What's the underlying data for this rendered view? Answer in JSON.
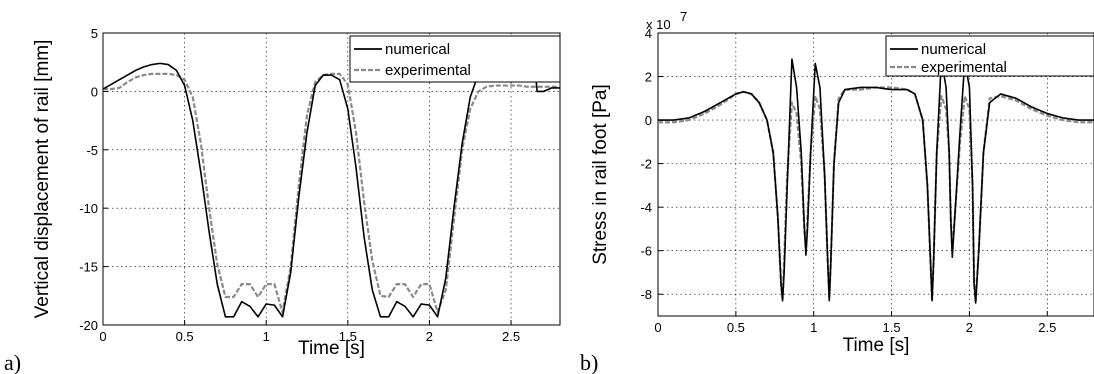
{
  "panels": [
    {
      "letter": "a)"
    },
    {
      "letter": "b)"
    }
  ],
  "chart_data": [
    {
      "type": "line",
      "title": "",
      "xlabel": "Time [s]",
      "ylabel": "Vertical displacement of rail [mm]",
      "xlim": [
        0,
        2.8
      ],
      "ylim": [
        -20,
        5
      ],
      "xticks": [
        "0",
        "0.5",
        "1",
        "1.5",
        "2",
        "2.5"
      ],
      "yticks": [
        "5",
        "0",
        "-5",
        "-10",
        "-15",
        "-20"
      ],
      "grid": true,
      "legend_position": "top-right",
      "series": [
        {
          "name": "numerical",
          "color": "#000000",
          "style": "solid",
          "x": [
            0,
            0.05,
            0.1,
            0.15,
            0.2,
            0.25,
            0.3,
            0.35,
            0.4,
            0.45,
            0.5,
            0.55,
            0.6,
            0.65,
            0.7,
            0.75,
            0.8,
            0.85,
            0.9,
            0.95,
            1.0,
            1.05,
            1.1,
            1.15,
            1.2,
            1.25,
            1.3,
            1.35,
            1.4,
            1.45,
            1.5,
            1.55,
            1.6,
            1.65,
            1.7,
            1.75,
            1.8,
            1.85,
            1.9,
            1.95,
            2.0,
            2.05,
            2.1,
            2.15,
            2.2,
            2.25,
            2.3,
            2.35,
            2.4,
            2.45,
            2.5,
            2.55,
            2.6,
            2.65,
            2.66,
            2.7,
            2.75,
            2.8
          ],
          "y": [
            0.2,
            0.6,
            1.0,
            1.4,
            1.8,
            2.1,
            2.3,
            2.4,
            2.3,
            1.8,
            0.5,
            -2.5,
            -7.0,
            -12.0,
            -16.5,
            -19.3,
            -19.3,
            -18.0,
            -18.4,
            -19.3,
            -18.2,
            -18.3,
            -19.3,
            -15.5,
            -9.0,
            -3.5,
            0.5,
            1.4,
            1.4,
            1.0,
            -1.5,
            -6.5,
            -12.5,
            -17.0,
            -19.3,
            -19.3,
            -18.0,
            -18.4,
            -19.3,
            -18.2,
            -18.3,
            -19.3,
            -16.0,
            -10.0,
            -4.5,
            -0.5,
            1.5,
            2.2,
            2.3,
            2.2,
            1.9,
            1.7,
            1.6,
            1.5,
            0.0,
            0.0,
            0.3,
            0.3
          ]
        },
        {
          "name": "experimental",
          "color": "#8a8a8a",
          "style": "dashed",
          "x": [
            0,
            0.05,
            0.1,
            0.15,
            0.2,
            0.25,
            0.3,
            0.35,
            0.4,
            0.45,
            0.5,
            0.55,
            0.6,
            0.65,
            0.7,
            0.75,
            0.8,
            0.85,
            0.9,
            0.95,
            1.0,
            1.05,
            1.1,
            1.15,
            1.2,
            1.25,
            1.3,
            1.35,
            1.4,
            1.45,
            1.5,
            1.55,
            1.6,
            1.65,
            1.7,
            1.75,
            1.8,
            1.85,
            1.9,
            1.95,
            2.0,
            2.05,
            2.1,
            2.15,
            2.2,
            2.25,
            2.3,
            2.35,
            2.4,
            2.45,
            2.5,
            2.55,
            2.6,
            2.65,
            2.7,
            2.75,
            2.8
          ],
          "y": [
            0.2,
            0.2,
            0.3,
            0.8,
            1.2,
            1.4,
            1.5,
            1.5,
            1.5,
            1.4,
            1.0,
            -0.5,
            -4.5,
            -10.0,
            -14.8,
            -17.6,
            -17.6,
            -16.5,
            -16.5,
            -17.6,
            -16.5,
            -16.5,
            -18.9,
            -15.0,
            -8.0,
            -2.0,
            0.8,
            1.4,
            1.5,
            1.5,
            0.6,
            -3.5,
            -9.5,
            -14.5,
            -17.5,
            -17.6,
            -16.5,
            -16.5,
            -17.6,
            -16.5,
            -16.5,
            -18.9,
            -17.0,
            -11.0,
            -5.0,
            -1.5,
            0.0,
            0.4,
            0.5,
            0.5,
            0.5,
            0.5,
            0.4,
            0.4,
            0.4,
            0.4,
            0.4
          ]
        }
      ]
    },
    {
      "type": "line",
      "title": "",
      "xlabel": "Time [s]",
      "ylabel": "Stress in rail foot [Pa]",
      "y_multiplier": "x 10",
      "y_multiplier_exp": "7",
      "xlim": [
        0,
        2.8
      ],
      "ylim": [
        -9,
        4
      ],
      "xticks": [
        "0",
        "0.5",
        "1",
        "1.5",
        "2",
        "2.5"
      ],
      "yticks": [
        "4",
        "2",
        "0",
        "-2",
        "-4",
        "-6",
        "-8"
      ],
      "grid": true,
      "legend_position": "top-right",
      "series": [
        {
          "name": "numerical",
          "color": "#000000",
          "style": "solid",
          "x": [
            0,
            0.1,
            0.2,
            0.3,
            0.4,
            0.5,
            0.55,
            0.6,
            0.65,
            0.7,
            0.74,
            0.77,
            0.79,
            0.8,
            0.81,
            0.83,
            0.86,
            0.89,
            0.92,
            0.94,
            0.95,
            0.96,
            0.98,
            1.01,
            1.04,
            1.07,
            1.09,
            1.1,
            1.11,
            1.13,
            1.16,
            1.2,
            1.3,
            1.4,
            1.5,
            1.6,
            1.65,
            1.7,
            1.73,
            1.75,
            1.76,
            1.77,
            1.79,
            1.82,
            1.85,
            1.87,
            1.88,
            1.89,
            1.91,
            1.94,
            1.97,
            2.0,
            2.02,
            2.03,
            2.04,
            2.06,
            2.09,
            2.13,
            2.2,
            2.3,
            2.4,
            2.5,
            2.6,
            2.7,
            2.8
          ],
          "y": [
            0.0,
            0.0,
            0.1,
            0.4,
            0.8,
            1.2,
            1.3,
            1.2,
            0.8,
            0.0,
            -1.5,
            -4.5,
            -7.5,
            -8.3,
            -7.0,
            -3.0,
            2.8,
            1.5,
            -1.5,
            -5.0,
            -6.2,
            -5.0,
            -1.5,
            2.6,
            1.5,
            -2.5,
            -6.5,
            -8.3,
            -6.5,
            -2.0,
            0.8,
            1.4,
            1.5,
            1.5,
            1.4,
            1.4,
            1.2,
            0.0,
            -3.0,
            -6.5,
            -8.3,
            -6.5,
            -1.5,
            2.8,
            1.5,
            -1.5,
            -4.5,
            -6.3,
            -4.0,
            -0.5,
            2.7,
            1.5,
            -3.0,
            -7.5,
            -8.4,
            -6.0,
            -1.5,
            0.8,
            1.2,
            1.0,
            0.6,
            0.3,
            0.1,
            0.0,
            0.0
          ]
        },
        {
          "name": "experimental",
          "color": "#8a8a8a",
          "style": "dashed",
          "x": [
            0,
            0.1,
            0.2,
            0.3,
            0.4,
            0.5,
            0.55,
            0.6,
            0.65,
            0.7,
            0.74,
            0.77,
            0.79,
            0.8,
            0.81,
            0.83,
            0.86,
            0.89,
            0.92,
            0.94,
            0.95,
            0.96,
            0.98,
            1.01,
            1.04,
            1.07,
            1.09,
            1.1,
            1.11,
            1.13,
            1.16,
            1.2,
            1.3,
            1.4,
            1.5,
            1.6,
            1.65,
            1.7,
            1.73,
            1.75,
            1.76,
            1.77,
            1.79,
            1.82,
            1.85,
            1.87,
            1.88,
            1.89,
            1.91,
            1.94,
            1.97,
            2.0,
            2.02,
            2.03,
            2.04,
            2.06,
            2.09,
            2.13,
            2.2,
            2.3,
            2.4,
            2.5,
            2.6,
            2.7,
            2.8
          ],
          "y": [
            -0.1,
            -0.1,
            0.0,
            0.3,
            0.7,
            1.2,
            1.3,
            1.2,
            0.8,
            0.0,
            -1.5,
            -4.5,
            -7.5,
            -8.2,
            -6.5,
            -2.5,
            0.8,
            0.3,
            -2.0,
            -5.0,
            -5.8,
            -4.5,
            -1.5,
            1.1,
            0.5,
            -2.5,
            -6.5,
            -8.2,
            -6.5,
            -2.0,
            1.0,
            1.4,
            1.4,
            1.5,
            1.5,
            1.4,
            1.2,
            0.0,
            -3.0,
            -6.5,
            -8.2,
            -6.5,
            -1.5,
            1.1,
            0.5,
            -1.5,
            -4.5,
            -6.0,
            -4.0,
            -1.0,
            1.1,
            0.5,
            -3.0,
            -7.5,
            -8.3,
            -6.0,
            -1.5,
            1.0,
            1.1,
            0.9,
            0.5,
            0.2,
            0.0,
            -0.1,
            -0.1
          ]
        }
      ]
    }
  ]
}
